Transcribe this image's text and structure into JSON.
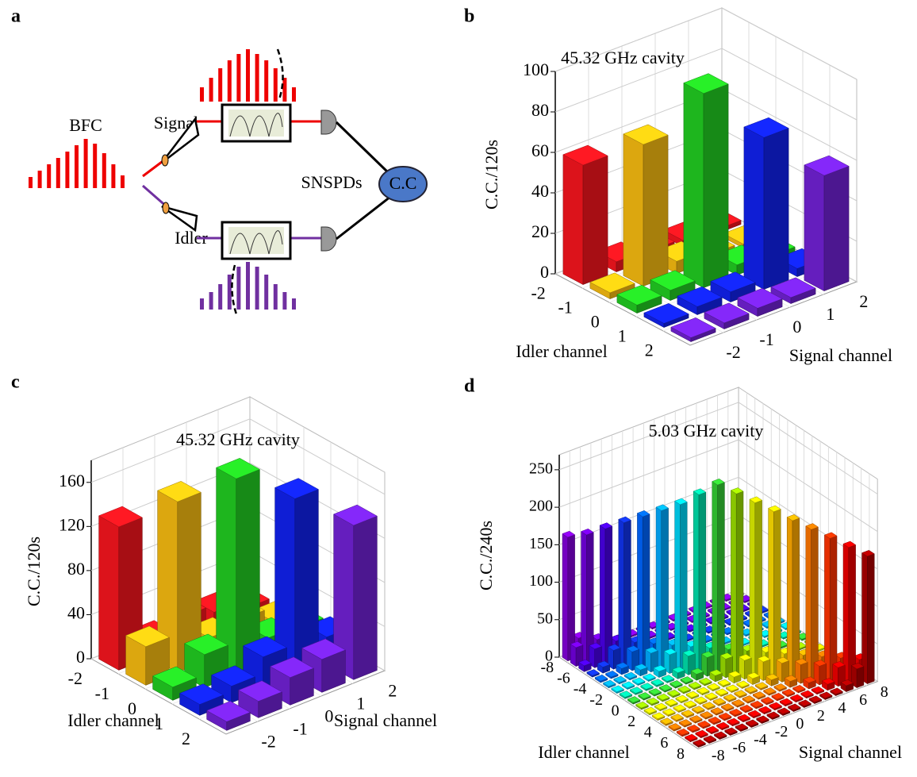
{
  "diagram": {
    "panel": "a",
    "labels": {
      "bfc": "BFC",
      "signal": "Signal",
      "idler": "Idler",
      "detectors": "SNSPDs",
      "counter": "C.C"
    }
  },
  "chart_data": [
    {
      "type": "bar3d",
      "label": "b",
      "title": "45.32 GHz cavity",
      "zlabel": "C.C./120s",
      "xlabel": "Idler channel",
      "ylabel": "Signal channel",
      "xcategories": [
        -2,
        -1,
        0,
        1,
        2
      ],
      "ycategories": [
        -2,
        -1,
        0,
        1,
        2
      ],
      "colors": [
        "#e8141c",
        "#e8b010",
        "#20c020",
        "#1020e0",
        "#6a20c8"
      ],
      "zlim": [
        0,
        100
      ],
      "zticks": [
        0,
        20,
        40,
        60,
        80,
        100
      ],
      "values": [
        [
          59,
          5,
          4,
          3,
          2
        ],
        [
          3,
          70,
          6,
          3,
          2
        ],
        [
          4,
          5,
          96,
          5,
          3
        ],
        [
          2,
          4,
          5,
          75,
          4
        ],
        [
          2,
          3,
          4,
          3,
          57
        ]
      ]
    },
    {
      "type": "bar3d",
      "label": "c",
      "title": "45.32 GHz cavity",
      "zlabel": "C.C./120s",
      "xlabel": "Idler channel",
      "ylabel": "Signal channel",
      "xcategories": [
        -2,
        -1,
        0,
        1,
        2
      ],
      "ycategories": [
        -2,
        -1,
        0,
        1,
        2
      ],
      "colors": [
        "#e8141c",
        "#e8b010",
        "#20c020",
        "#1020e0",
        "#6a20c8"
      ],
      "zlim": [
        0,
        180
      ],
      "zticks": [
        0,
        40,
        80,
        120,
        160
      ],
      "values": [
        [
          130,
          15,
          25,
          18,
          10
        ],
        [
          35,
          155,
          20,
          25,
          12
        ],
        [
          12,
          30,
          178,
          22,
          20
        ],
        [
          10,
          15,
          30,
          162,
          25
        ],
        [
          8,
          15,
          25,
          30,
          140
        ]
      ]
    },
    {
      "type": "bar3d",
      "label": "d",
      "title": "5.03 GHz cavity",
      "zlabel": "C.C./240s",
      "xlabel": "Idler channel",
      "ylabel": "Signal channel",
      "xcategories": [
        -8,
        null,
        -6,
        null,
        -4,
        null,
        -2,
        null,
        0,
        null,
        2,
        null,
        4,
        null,
        6,
        null,
        8
      ],
      "ycategories": [
        -8,
        null,
        -6,
        null,
        -4,
        null,
        -2,
        null,
        0,
        null,
        2,
        null,
        4,
        null,
        6,
        null,
        8
      ],
      "colors": [
        "#7a00cc",
        "#6a00d0",
        "#4400d8",
        "#1030e0",
        "#0060f0",
        "#00a0f0",
        "#00c8e8",
        "#00d0a0",
        "#30c030",
        "#90d000",
        "#d0e000",
        "#f0d000",
        "#f0a000",
        "#f07000",
        "#f03000",
        "#e00000",
        "#a00000"
      ],
      "zlim": [
        0,
        270
      ],
      "zticks": [
        0,
        50,
        100,
        150,
        200,
        250
      ],
      "values": [
        [
          165,
          25,
          8,
          2,
          2,
          2,
          2,
          2,
          2,
          2,
          2,
          2,
          2,
          2,
          2,
          2,
          2
        ],
        [
          25,
          170,
          25,
          8,
          2,
          2,
          2,
          2,
          2,
          2,
          2,
          2,
          2,
          2,
          2,
          2,
          2
        ],
        [
          8,
          25,
          180,
          25,
          8,
          2,
          2,
          2,
          2,
          2,
          2,
          2,
          2,
          2,
          2,
          2,
          2
        ],
        [
          2,
          8,
          25,
          190,
          25,
          8,
          2,
          2,
          2,
          2,
          2,
          2,
          2,
          2,
          2,
          2,
          2
        ],
        [
          2,
          2,
          8,
          25,
          200,
          25,
          8,
          2,
          2,
          2,
          2,
          2,
          2,
          2,
          2,
          2,
          2
        ],
        [
          2,
          2,
          2,
          8,
          25,
          210,
          25,
          8,
          2,
          2,
          2,
          2,
          2,
          2,
          2,
          2,
          2
        ],
        [
          2,
          2,
          2,
          2,
          8,
          25,
          220,
          25,
          8,
          2,
          2,
          2,
          2,
          2,
          2,
          2,
          2
        ],
        [
          2,
          2,
          2,
          2,
          2,
          8,
          25,
          235,
          25,
          8,
          2,
          2,
          2,
          2,
          2,
          2,
          2
        ],
        [
          2,
          2,
          2,
          2,
          2,
          2,
          8,
          25,
          250,
          25,
          8,
          2,
          2,
          2,
          2,
          2,
          2
        ],
        [
          2,
          2,
          2,
          2,
          2,
          2,
          2,
          8,
          25,
          240,
          25,
          8,
          2,
          2,
          2,
          2,
          2
        ],
        [
          2,
          2,
          2,
          2,
          2,
          2,
          2,
          2,
          8,
          25,
          230,
          25,
          8,
          2,
          2,
          2,
          2
        ],
        [
          2,
          2,
          2,
          2,
          2,
          2,
          2,
          2,
          2,
          8,
          25,
          220,
          25,
          8,
          2,
          2,
          2
        ],
        [
          2,
          2,
          2,
          2,
          2,
          2,
          2,
          2,
          2,
          2,
          8,
          25,
          210,
          25,
          8,
          2,
          2
        ],
        [
          2,
          2,
          2,
          2,
          2,
          2,
          2,
          2,
          2,
          2,
          2,
          8,
          25,
          200,
          25,
          8,
          2
        ],
        [
          2,
          2,
          2,
          2,
          2,
          2,
          2,
          2,
          2,
          2,
          2,
          2,
          8,
          25,
          190,
          25,
          8
        ],
        [
          2,
          2,
          2,
          2,
          2,
          2,
          2,
          2,
          2,
          2,
          2,
          2,
          2,
          8,
          25,
          180,
          25
        ],
        [
          2,
          2,
          2,
          2,
          2,
          2,
          2,
          2,
          2,
          2,
          2,
          2,
          2,
          2,
          8,
          25,
          170
        ]
      ]
    }
  ]
}
